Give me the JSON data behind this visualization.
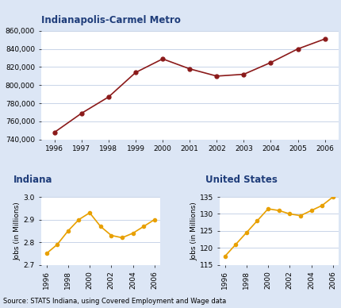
{
  "metro_years": [
    1996,
    1997,
    1998,
    1999,
    2000,
    2001,
    2002,
    2003,
    2004,
    2005,
    2006
  ],
  "metro_values": [
    748000,
    769000,
    787000,
    814000,
    829000,
    818000,
    810000,
    812000,
    825000,
    840000,
    851000
  ],
  "metro_color": "#8b1a1a",
  "metro_title": "Indianapolis-Carmel Metro",
  "metro_ylim": [
    740000,
    860000
  ],
  "metro_yticks": [
    740000,
    760000,
    780000,
    800000,
    820000,
    840000,
    860000
  ],
  "indiana_years": [
    1996,
    1997,
    1998,
    1999,
    2000,
    2001,
    2002,
    2003,
    2004,
    2005,
    2006
  ],
  "indiana_values": [
    2.75,
    2.79,
    2.85,
    2.9,
    2.93,
    2.87,
    2.83,
    2.82,
    2.84,
    2.87,
    2.9
  ],
  "indiana_color": "#e8a000",
  "indiana_title": "Indiana",
  "indiana_ylabel": "Jobs (in Millions)",
  "indiana_ylim": [
    2.7,
    3.0
  ],
  "indiana_yticks": [
    2.7,
    2.8,
    2.9,
    3.0
  ],
  "us_years": [
    1996,
    1997,
    1998,
    1999,
    2000,
    2001,
    2002,
    2003,
    2004,
    2005,
    2006
  ],
  "us_values": [
    117.5,
    121.0,
    124.5,
    128.0,
    131.5,
    131.0,
    130.0,
    129.5,
    131.0,
    132.5,
    135.0
  ],
  "us_color": "#e8a000",
  "us_title": "United States",
  "us_ylabel": "Jobs (in Millions)",
  "us_ylim": [
    115,
    135
  ],
  "us_yticks": [
    115,
    120,
    125,
    130,
    135
  ],
  "source_text": "Source: STATS Indiana, using Covered Employment and Wage data",
  "title_fontsize": 8.5,
  "tick_fontsize": 6.5,
  "label_fontsize": 6.5,
  "source_fontsize": 6,
  "grid_color": "#c8d4e8",
  "bg_color": "#dce6f5",
  "plot_bg": "#ffffff",
  "title_color": "#1f3d7a"
}
